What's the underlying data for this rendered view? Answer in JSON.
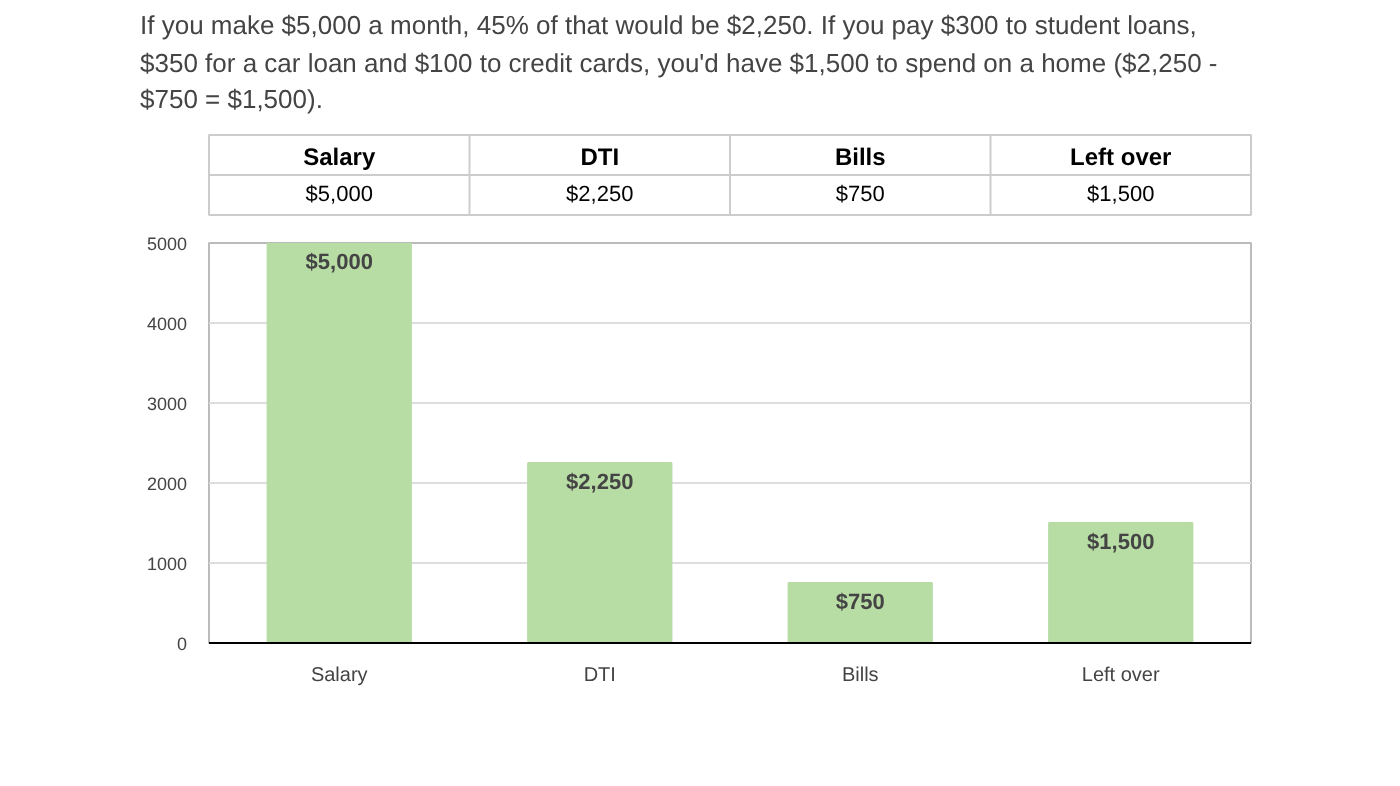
{
  "chart_data": {
    "type": "bar",
    "categories": [
      "Salary",
      "DTI",
      "Bills",
      "Left over"
    ],
    "values": [
      5000,
      2250,
      750,
      1500
    ],
    "value_labels": [
      "$5,000",
      "$2,250",
      "$750",
      "$1,500"
    ],
    "color": "#b7dca4",
    "ylim": [
      0,
      5000
    ],
    "yticks": [
      0,
      1000,
      2000,
      3000,
      4000,
      5000
    ],
    "grid": "y",
    "annotations": [
      "If you make $5,000 a month, 45% of that would be $2,250. If you pay $300 to student loans, $350 for a car loan and $100 to credit cards, you'd have $1,500 to spend on a home ($2,250 - $750 = $1,500)."
    ]
  }
}
